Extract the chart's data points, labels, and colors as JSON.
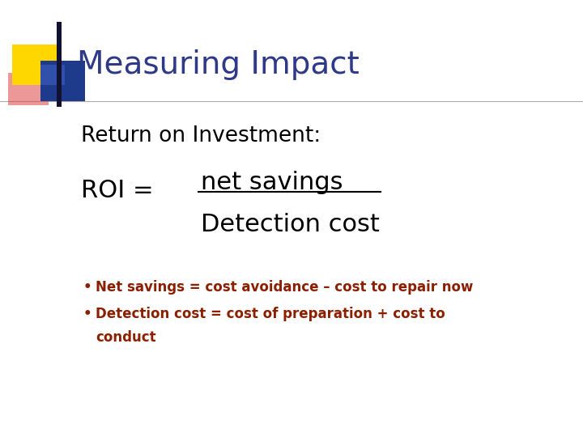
{
  "title": "Measuring Impact",
  "title_color": "#2E3A87",
  "title_fontsize": 28,
  "bg_color": "#FFFFFF",
  "subtitle": "Return on Investment:",
  "subtitle_fontsize": 19,
  "roi_label": "ROI =",
  "roi_fontsize": 22,
  "numerator": "net savings",
  "numerator_fontsize": 22,
  "denominator": "Detection cost",
  "denominator_fontsize": 22,
  "bullet1": "Net savings = cost avoidance – cost to repair now",
  "bullet2_line1": "Detection cost = cost of preparation + cost to",
  "bullet2_line2": "conduct",
  "bullet_fontsize": 12,
  "bullet_color": "#8B2000",
  "text_color": "#000000",
  "accent_yellow": "#FFD700",
  "accent_blue": "#1E3A8A",
  "accent_blue2": "#4466CC",
  "accent_red": "#DD4444",
  "header_line_color": "#AAAAAA"
}
